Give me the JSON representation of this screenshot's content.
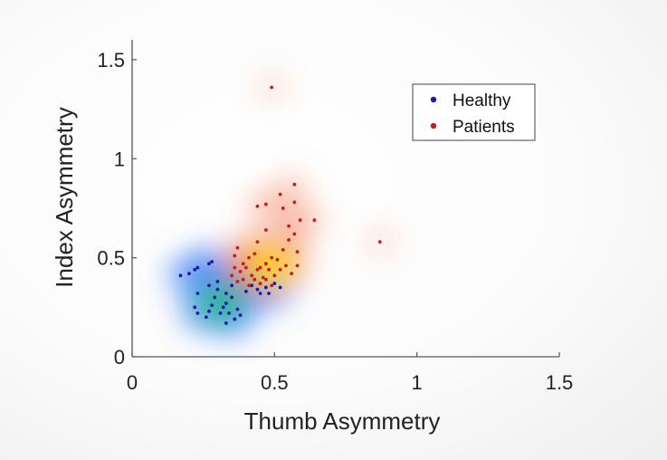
{
  "chart_data": {
    "type": "scatter",
    "title": "",
    "xlabel": "Thumb Asymmetry",
    "ylabel": "Index Asymmetry",
    "xlim": [
      0,
      1.5
    ],
    "ylim": [
      0,
      1.6
    ],
    "xticks": [
      0,
      0.5,
      1,
      1.5
    ],
    "xtick_labels": [
      "0",
      "0.5",
      "1",
      "1.5"
    ],
    "yticks": [
      0,
      0.5,
      1,
      1.5
    ],
    "ytick_labels": [
      "0",
      "0.5",
      "1",
      "1.5"
    ],
    "legend_position": "top-right",
    "series": [
      {
        "name": "Healthy",
        "color": "#1a1aa8",
        "density_color": "blue-green",
        "points": [
          [
            0.17,
            0.41
          ],
          [
            0.2,
            0.42
          ],
          [
            0.22,
            0.44
          ],
          [
            0.23,
            0.45
          ],
          [
            0.27,
            0.47
          ],
          [
            0.28,
            0.48
          ],
          [
            0.23,
            0.32
          ],
          [
            0.22,
            0.25
          ],
          [
            0.23,
            0.22
          ],
          [
            0.26,
            0.2
          ],
          [
            0.27,
            0.23
          ],
          [
            0.28,
            0.26
          ],
          [
            0.29,
            0.3
          ],
          [
            0.3,
            0.34
          ],
          [
            0.31,
            0.22
          ],
          [
            0.32,
            0.25
          ],
          [
            0.33,
            0.17
          ],
          [
            0.33,
            0.27
          ],
          [
            0.34,
            0.22
          ],
          [
            0.35,
            0.3
          ],
          [
            0.36,
            0.19
          ],
          [
            0.37,
            0.24
          ],
          [
            0.38,
            0.21
          ],
          [
            0.33,
            0.32
          ],
          [
            0.3,
            0.38
          ],
          [
            0.27,
            0.36
          ],
          [
            0.35,
            0.36
          ],
          [
            0.4,
            0.33
          ],
          [
            0.45,
            0.32
          ],
          [
            0.47,
            0.35
          ],
          [
            0.48,
            0.32
          ],
          [
            0.5,
            0.37
          ],
          [
            0.52,
            0.35
          ],
          [
            0.42,
            0.36
          ],
          [
            0.44,
            0.34
          ]
        ]
      },
      {
        "name": "Patients",
        "color": "#c0201a",
        "density_color": "red-orange-yellow",
        "points": [
          [
            0.49,
            1.36
          ],
          [
            0.87,
            0.58
          ],
          [
            0.57,
            0.87
          ],
          [
            0.52,
            0.82
          ],
          [
            0.44,
            0.76
          ],
          [
            0.47,
            0.77
          ],
          [
            0.53,
            0.75
          ],
          [
            0.57,
            0.78
          ],
          [
            0.64,
            0.69
          ],
          [
            0.59,
            0.69
          ],
          [
            0.57,
            0.62
          ],
          [
            0.55,
            0.59
          ],
          [
            0.37,
            0.55
          ],
          [
            0.44,
            0.58
          ],
          [
            0.47,
            0.64
          ],
          [
            0.55,
            0.66
          ],
          [
            0.36,
            0.51
          ],
          [
            0.39,
            0.47
          ],
          [
            0.41,
            0.5
          ],
          [
            0.43,
            0.52
          ],
          [
            0.45,
            0.45
          ],
          [
            0.47,
            0.47
          ],
          [
            0.49,
            0.5
          ],
          [
            0.51,
            0.49
          ],
          [
            0.53,
            0.54
          ],
          [
            0.58,
            0.53
          ],
          [
            0.38,
            0.43
          ],
          [
            0.4,
            0.45
          ],
          [
            0.42,
            0.41
          ],
          [
            0.44,
            0.44
          ],
          [
            0.46,
            0.4
          ],
          [
            0.48,
            0.44
          ],
          [
            0.5,
            0.41
          ],
          [
            0.52,
            0.44
          ],
          [
            0.54,
            0.46
          ],
          [
            0.56,
            0.42
          ],
          [
            0.58,
            0.46
          ],
          [
            0.37,
            0.38
          ],
          [
            0.39,
            0.39
          ],
          [
            0.41,
            0.36
          ],
          [
            0.43,
            0.39
          ],
          [
            0.45,
            0.37
          ],
          [
            0.47,
            0.39
          ],
          [
            0.49,
            0.36
          ],
          [
            0.36,
            0.45
          ],
          [
            0.35,
            0.41
          ]
        ]
      }
    ]
  }
}
